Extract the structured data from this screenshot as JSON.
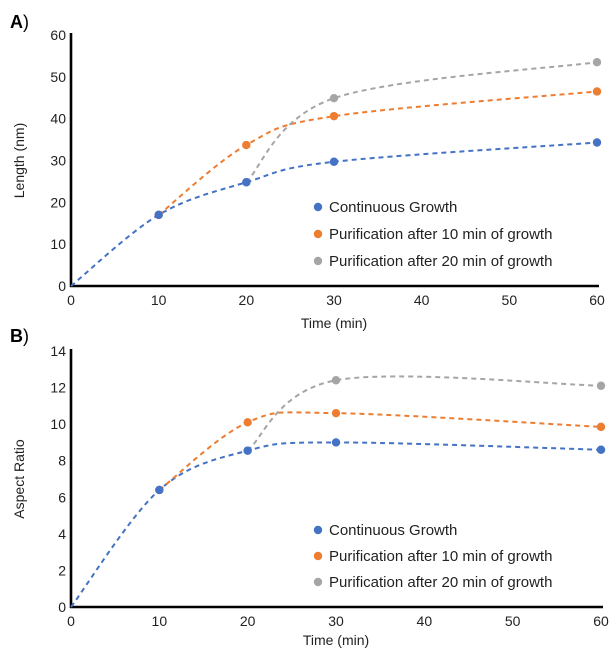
{
  "colors": {
    "continuous": "#4472C4",
    "purif10": "#ED7D31",
    "purif20": "#A5A5A5",
    "axis": "#000000"
  },
  "chart_data": [
    {
      "type": "scatter",
      "panel_label": "A",
      "xlabel": "Time (min)",
      "ylabel": "Length (nm)",
      "xlim": [
        0,
        60
      ],
      "ylim": [
        0,
        60
      ],
      "x_ticks": [
        0,
        10,
        20,
        30,
        40,
        50,
        60
      ],
      "y_ticks": [
        0,
        10,
        20,
        30,
        40,
        50,
        60
      ],
      "grid": false,
      "legend_position": "bottom-right",
      "series": [
        {
          "name": "Continuous Growth",
          "color": "#4472C4",
          "x": [
            0,
            10,
            20,
            30,
            60
          ],
          "y": [
            0,
            17,
            24.8,
            29.7,
            34.3
          ]
        },
        {
          "name": "Purification after 10 min of growth",
          "color": "#ED7D31",
          "x": [
            10,
            20,
            30,
            60
          ],
          "y": [
            17,
            33.7,
            40.6,
            46.5
          ]
        },
        {
          "name": "Purification after 20 min of growth",
          "color": "#A5A5A5",
          "x": [
            20,
            30,
            60
          ],
          "y": [
            24.8,
            44.9,
            53.5
          ]
        }
      ]
    },
    {
      "type": "scatter",
      "panel_label": "B",
      "xlabel": "Time (min)",
      "ylabel": "Aspect Ratio",
      "xlim": [
        0,
        60
      ],
      "ylim": [
        0,
        14
      ],
      "x_ticks": [
        0,
        10,
        20,
        30,
        40,
        50,
        60
      ],
      "y_ticks": [
        0,
        2,
        4,
        6,
        8,
        10,
        12,
        14
      ],
      "grid": false,
      "legend_position": "bottom-right",
      "series": [
        {
          "name": "Continuous Growth",
          "color": "#4472C4",
          "x": [
            0,
            10,
            20,
            30,
            60
          ],
          "y": [
            0,
            6.4,
            8.55,
            9.0,
            8.6
          ]
        },
        {
          "name": "Purification after 10 min of growth",
          "color": "#ED7D31",
          "x": [
            10,
            20,
            30,
            60
          ],
          "y": [
            6.4,
            10.1,
            10.6,
            9.85
          ]
        },
        {
          "name": "Purification after 20 min of growth",
          "color": "#A5A5A5",
          "x": [
            20,
            30,
            60
          ],
          "y": [
            8.55,
            12.4,
            12.1
          ]
        }
      ]
    }
  ]
}
